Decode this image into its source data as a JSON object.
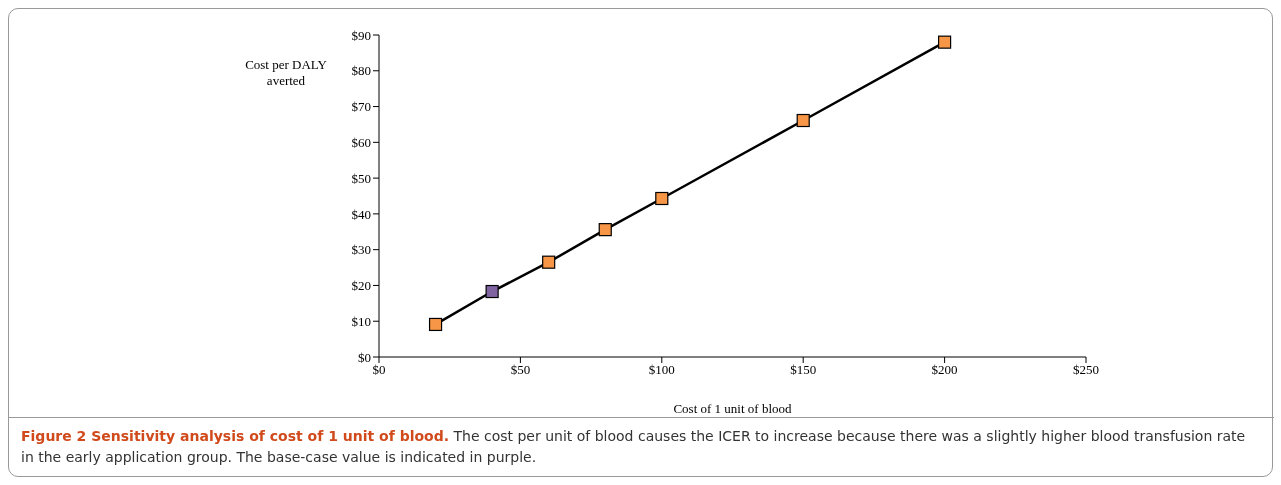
{
  "chart_data": {
    "type": "line",
    "title": "Figure 2 Sensitivity analysis of cost of 1 unit of blood.",
    "xlabel": "Cost of 1 unit of blood",
    "ylabel": "Cost per DALY averted",
    "annotations": [
      "The cost per unit of blood causes the ICER to increase because there was a slightly higher blood transfusion rate in the early application group. The base-case value is indicated in purple."
    ],
    "x": [
      20,
      40,
      60,
      80,
      100,
      150,
      200
    ],
    "series": [
      {
        "color": "#000000",
        "values": [
          9.1,
          18.3,
          26.5,
          35.6,
          44.3,
          66.1,
          88.0
        ],
        "colors": [
          "#f79646",
          "#8064a2",
          "#f79646",
          "#f79646",
          "#f79646",
          "#f79646",
          "#f79646"
        ]
      }
    ],
    "xlim": [
      0,
      250
    ],
    "xticks": [
      {
        "value": 0,
        "label": "$0"
      },
      {
        "value": 50,
        "label": "$50"
      },
      {
        "value": 100,
        "label": "$100"
      },
      {
        "value": 150,
        "label": "$150"
      },
      {
        "value": 200,
        "label": "$200"
      },
      {
        "value": 250,
        "label": "$250"
      }
    ],
    "ylim": [
      0,
      90
    ],
    "yticks": [
      {
        "value": 0,
        "label": "$0"
      },
      {
        "value": 10,
        "label": "$10"
      },
      {
        "value": 20,
        "label": "$20"
      },
      {
        "value": 30,
        "label": "$30"
      },
      {
        "value": 40,
        "label": "$40"
      },
      {
        "value": 50,
        "label": "$50"
      },
      {
        "value": 60,
        "label": "$60"
      },
      {
        "value": 70,
        "label": "$70"
      },
      {
        "value": 80,
        "label": "$80"
      },
      {
        "value": 90,
        "label": "$90"
      }
    ],
    "grid": false,
    "legend": false,
    "marker": "square",
    "line_style": "solid"
  }
}
